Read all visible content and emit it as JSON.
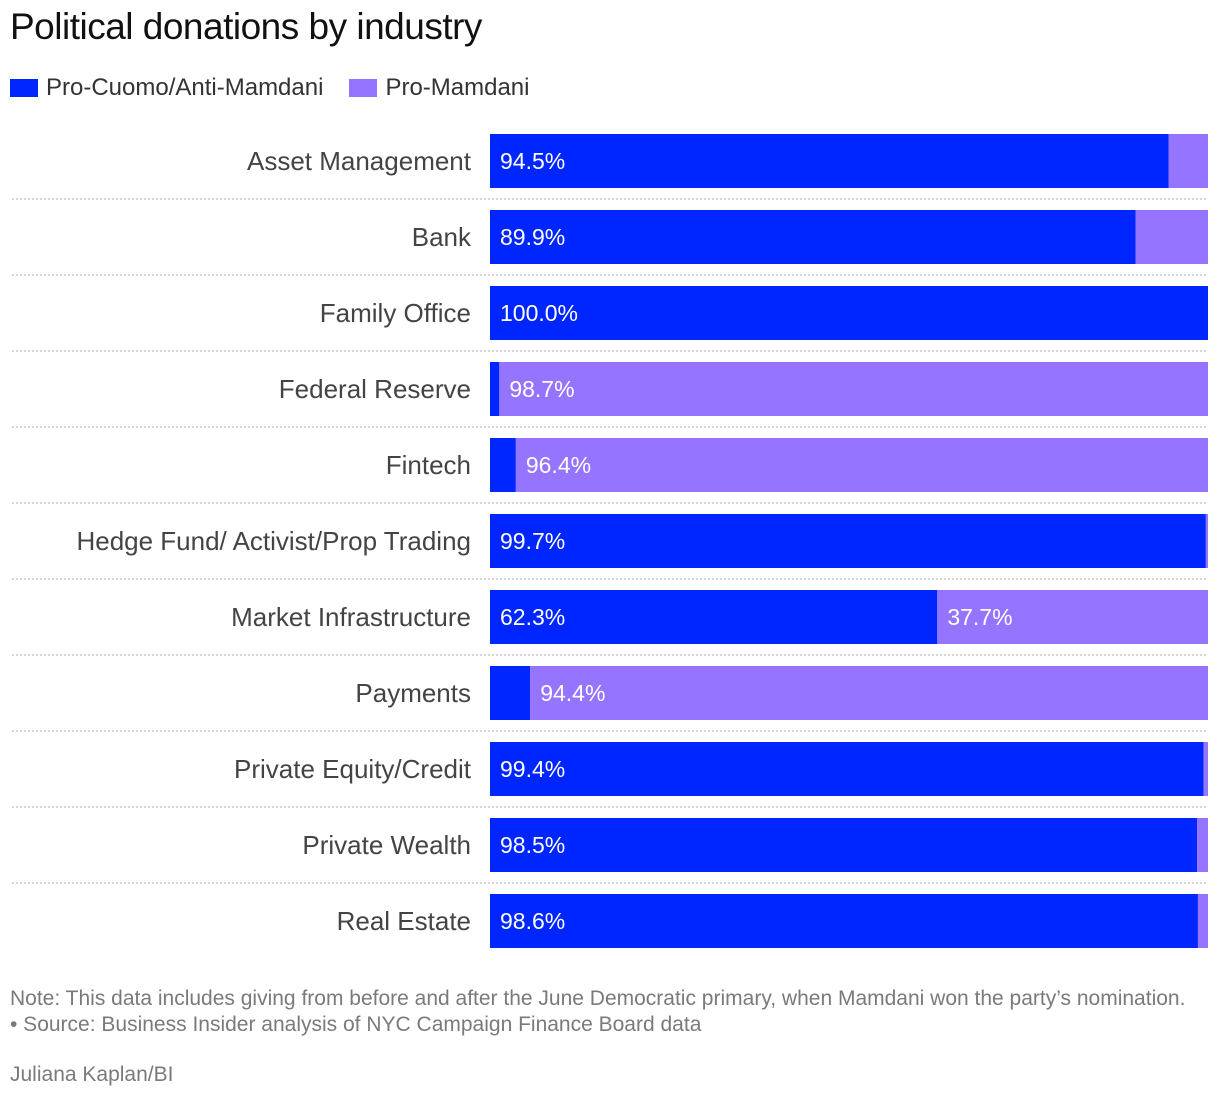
{
  "chart_data": {
    "type": "bar",
    "orientation": "horizontal",
    "stacked": true,
    "title": "Political donations by industry",
    "legend_position": "top-left",
    "grid": false,
    "xlim": [
      0,
      100
    ],
    "categories": [
      "Asset Management",
      "Bank",
      "Family Office",
      "Federal Reserve",
      "Fintech",
      "Hedge Fund/ Activist/Prop Trading",
      "Market Infrastructure",
      "Payments",
      "Private Equity/Credit",
      "Private Wealth",
      "Real Estate"
    ],
    "series": [
      {
        "name": "Pro-Cuomo/Anti-Mamdani",
        "color": "#0026ff",
        "values": [
          94.5,
          89.9,
          100.0,
          1.3,
          3.6,
          99.7,
          62.3,
          5.6,
          99.4,
          98.5,
          98.6
        ],
        "labels": [
          "94.5%",
          "89.9%",
          "100.0%",
          "",
          "",
          "99.7%",
          "62.3%",
          "",
          "99.4%",
          "98.5%",
          "98.6%"
        ]
      },
      {
        "name": "Pro-Mamdani",
        "color": "#9575ff",
        "values": [
          5.5,
          10.1,
          0,
          98.7,
          96.4,
          0.3,
          37.7,
          94.4,
          0.6,
          1.5,
          1.4
        ],
        "labels": [
          "",
          "",
          "",
          "98.7%",
          "96.4%",
          "",
          "37.7%",
          "94.4%",
          "",
          "",
          ""
        ]
      }
    ]
  },
  "note": "Note: This data includes giving from before and after the June Democratic primary, when Mamdani won the party’s nomination. • Source: Business Insider analysis of NYC Campaign Finance Board data",
  "credit": "Juliana Kaplan/BI"
}
